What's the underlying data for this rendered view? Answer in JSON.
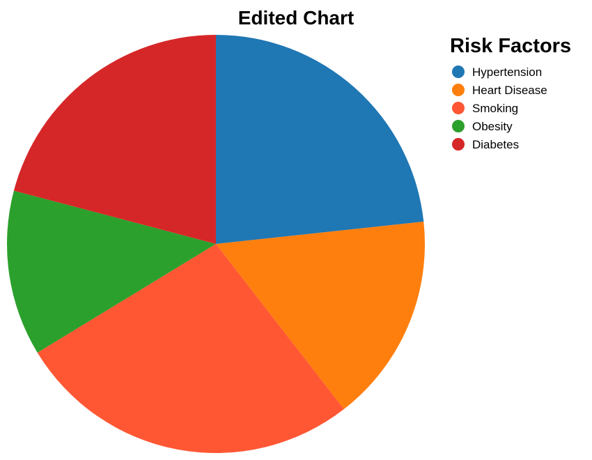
{
  "chart_data": {
    "type": "pie",
    "title": "Edited Chart",
    "legend_title": "Risk Factors",
    "legend_position": "top-right",
    "start_angle_deg": 0,
    "direction": "clockwise",
    "slices": [
      {
        "label": "Hypertension",
        "value": 23.3,
        "color": "#1f77b4"
      },
      {
        "label": "Heart Disease",
        "value": 16.2,
        "color": "#ff7f0e"
      },
      {
        "label": "Smoking",
        "value": 26.8,
        "color": "#ff5733"
      },
      {
        "label": "Obesity",
        "value": 12.8,
        "color": "#2ca02c"
      },
      {
        "label": "Diabetes",
        "value": 20.9,
        "color": "#d62728"
      }
    ]
  }
}
